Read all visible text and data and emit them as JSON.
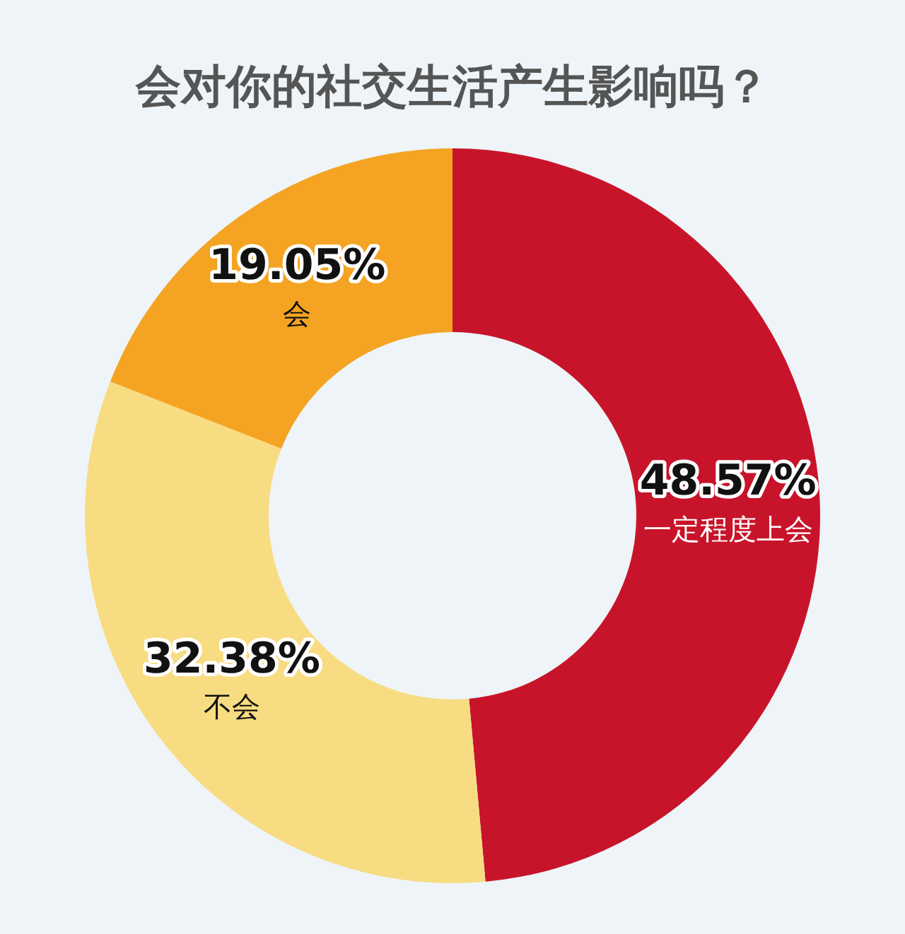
{
  "chart_data": {
    "type": "donut",
    "title": "会对你的社交生活产生影响吗？",
    "categories": [
      "一定程度上会",
      "不会",
      "会"
    ],
    "values": [
      48.57,
      32.38,
      19.05
    ],
    "colors": [
      "#c8142a",
      "#f8dc82",
      "#f4a422"
    ],
    "value_labels": [
      "48.57%",
      "32.38%",
      "19.05%"
    ],
    "legend": false
  }
}
